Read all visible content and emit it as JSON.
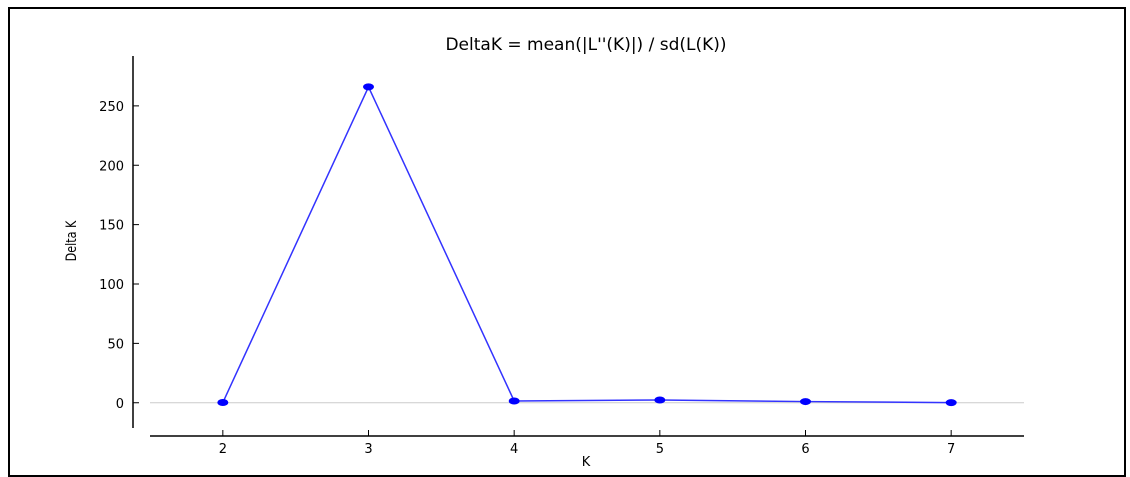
{
  "chart_data": {
    "type": "line",
    "title": "DeltaK = mean(|L''(K)|) / sd(L(K))",
    "xlabel": "K",
    "ylabel": "Delta K",
    "x": [
      2,
      3,
      4,
      5,
      6,
      7
    ],
    "series": [
      {
        "values": [
          0.2,
          266,
          1.5,
          2.3,
          1.0,
          0.1
        ]
      }
    ],
    "xlim": [
      1.5,
      7.5
    ],
    "ylim": [
      -28,
      292
    ],
    "xticks": [
      2,
      3,
      4,
      5,
      6,
      7
    ],
    "yticks": [
      0,
      50,
      100,
      150,
      200,
      250
    ],
    "zero_line": true,
    "grid": false,
    "colors": {
      "line": "#3333ff",
      "marker": "#0000ff",
      "zero_line": "#cccccc"
    }
  }
}
